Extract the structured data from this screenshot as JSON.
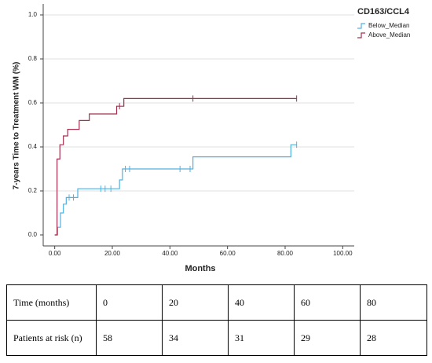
{
  "chart_data": {
    "type": "step",
    "xlabel": "Months",
    "ylabel": "7-years Time to Treatment WM (%)",
    "legend_title": "CD163/CCL4",
    "legend": "top-right",
    "grid": true,
    "xlim": [
      -4,
      104
    ],
    "ylim": [
      -0.05,
      1.05
    ],
    "xticks": [
      {
        "value": 0,
        "label": "0.00"
      },
      {
        "value": 20,
        "label": "20.00"
      },
      {
        "value": 40,
        "label": "40.00"
      },
      {
        "value": 60,
        "label": "60.00"
      },
      {
        "value": 80,
        "label": "80.00"
      },
      {
        "value": 100,
        "label": "100.00"
      }
    ],
    "yticks": [
      {
        "value": 0,
        "label": "0.0"
      },
      {
        "value": 0.2,
        "label": "0.2"
      },
      {
        "value": 0.4,
        "label": "0.4"
      },
      {
        "value": 0.6,
        "label": "0.6"
      },
      {
        "value": 0.8,
        "label": "0.8"
      },
      {
        "value": 1,
        "label": "1.0"
      }
    ],
    "series": [
      {
        "name": "Below_Median",
        "color": "#4fb2e0",
        "x": [
          0,
          1,
          2,
          3,
          4,
          8,
          22.5,
          23.5,
          48,
          82,
          84
        ],
        "values": [
          0,
          0.035,
          0.1,
          0.14,
          0.17,
          0.21,
          0.25,
          0.3,
          0.355,
          0.41,
          0.41
        ],
        "censored": [
          5,
          6.5,
          16,
          17.5,
          19.5,
          24.5,
          26,
          43.5,
          47,
          84
        ]
      },
      {
        "name": "Above_Median",
        "color": "#a3304f",
        "x": [
          0,
          0.8,
          1.8,
          3,
          4.5,
          8.5,
          12,
          21.5,
          24,
          84
        ],
        "values": [
          0,
          0.345,
          0.41,
          0.45,
          0.48,
          0.52,
          0.55,
          0.585,
          0.62,
          0.62
        ],
        "censored": [
          22.5,
          48,
          84
        ]
      }
    ]
  },
  "table": {
    "rows": [
      [
        "Time (months)",
        0,
        20,
        40,
        60,
        80
      ],
      [
        "Patients at risk (n)",
        58,
        34,
        31,
        29,
        28
      ]
    ]
  }
}
